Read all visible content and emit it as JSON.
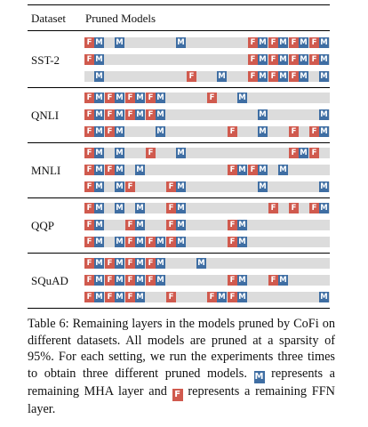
{
  "header": {
    "dataset": "Dataset",
    "pruned": "Pruned Models"
  },
  "colors": {
    "mha": "#3f6ea3",
    "ffn": "#d05a4e",
    "track": "#dcdcdc"
  },
  "table_data": {
    "layers_per_model": 12,
    "blocks": [
      {
        "name": "SST-2",
        "models": [
          {
            "mha": [
              1,
              2,
              5,
              9,
              10,
              11,
              12
            ],
            "ffn": [
              1,
              9,
              10,
              11,
              12
            ]
          },
          {
            "mha": [
              1,
              9,
              10,
              11,
              12
            ],
            "ffn": [
              1,
              9,
              10,
              11,
              12
            ]
          },
          {
            "mha": [
              1,
              7,
              9,
              10,
              11,
              12
            ],
            "ffn": [
              6,
              9,
              10,
              11
            ]
          }
        ]
      },
      {
        "name": "QNLI",
        "models": [
          {
            "mha": [
              1,
              2,
              3,
              4,
              8
            ],
            "ffn": [
              1,
              2,
              3,
              4,
              7
            ]
          },
          {
            "mha": [
              1,
              2,
              3,
              4,
              9,
              12
            ],
            "ffn": [
              1,
              2,
              3,
              4
            ]
          },
          {
            "mha": [
              1,
              2,
              4,
              9,
              12
            ],
            "ffn": [
              1,
              2,
              8,
              11,
              12
            ]
          }
        ]
      },
      {
        "name": "MNLI",
        "models": [
          {
            "mha": [
              1,
              2,
              5,
              11
            ],
            "ffn": [
              1,
              4,
              11,
              12
            ]
          },
          {
            "mha": [
              1,
              2,
              3,
              8,
              9,
              10
            ],
            "ffn": [
              1,
              2,
              8,
              9
            ]
          },
          {
            "mha": [
              1,
              2,
              5,
              9,
              12
            ],
            "ffn": [
              1,
              3,
              5
            ]
          }
        ]
      },
      {
        "name": "QQP",
        "models": [
          {
            "mha": [
              1,
              2,
              3,
              5,
              12
            ],
            "ffn": [
              1,
              5,
              10,
              11,
              12
            ]
          },
          {
            "mha": [
              1,
              3,
              5,
              8
            ],
            "ffn": [
              1,
              3,
              5,
              8
            ]
          },
          {
            "mha": [
              1,
              2,
              3,
              4,
              5,
              8
            ],
            "ffn": [
              1,
              3,
              4,
              5,
              8
            ]
          }
        ]
      },
      {
        "name": "SQuAD",
        "models": [
          {
            "mha": [
              1,
              2,
              3,
              4,
              6
            ],
            "ffn": [
              1,
              2,
              3,
              4
            ]
          },
          {
            "mha": [
              1,
              2,
              3,
              4,
              8,
              10
            ],
            "ffn": [
              1,
              2,
              3,
              4,
              8,
              10
            ]
          },
          {
            "mha": [
              1,
              2,
              3,
              7,
              8,
              12
            ],
            "ffn": [
              1,
              2,
              3,
              5,
              7,
              8
            ]
          }
        ]
      }
    ]
  },
  "caption": {
    "lead": "Table 6: Remaining layers in the models pruned by CoFi on different datasets. All models are pruned at a sparsity of 95%. For each setting, we run the experiments three times to obtain three different pruned models.",
    "badge_m": "M",
    "mid": "represents a remaining MHA layer and",
    "badge_f": "F",
    "tail": "represents a remaining FFN layer."
  }
}
